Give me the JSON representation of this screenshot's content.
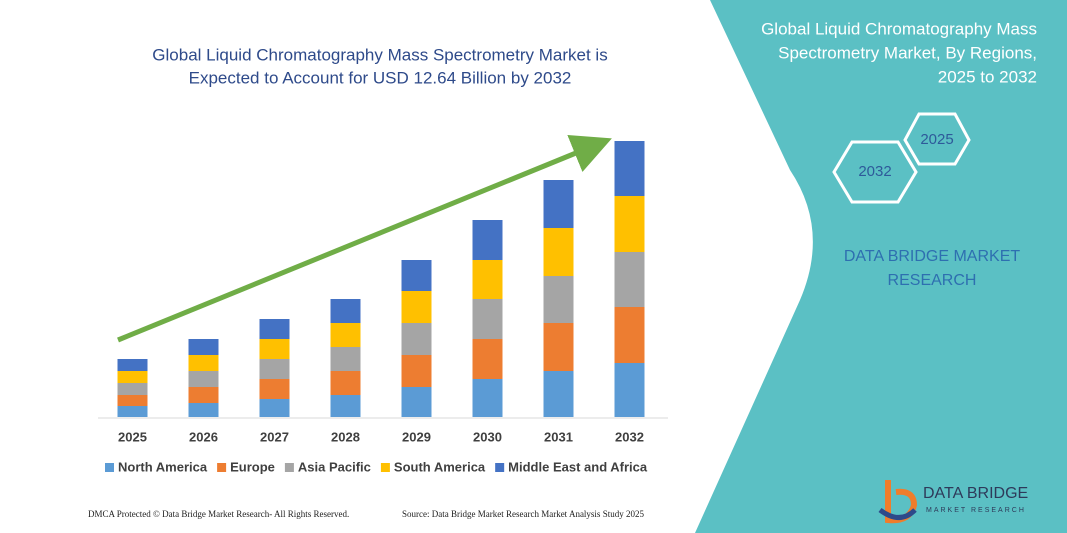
{
  "chart_data": {
    "type": "bar",
    "stacked": true,
    "title": [
      "Global Liquid Chromatography Mass Spectrometry Market is",
      "Expected to Account for USD 12.64 Billion by 2032"
    ],
    "categories": [
      "2025",
      "2026",
      "2027",
      "2028",
      "2029",
      "2030",
      "2031",
      "2032"
    ],
    "series": [
      {
        "name": "North America",
        "color": "#5b9bd5",
        "values": [
          11,
          14,
          18,
          22,
          30,
          38,
          46,
          54
        ]
      },
      {
        "name": "Europe",
        "color": "#ed7d31",
        "values": [
          11,
          16,
          20,
          24,
          32,
          40,
          48,
          56
        ]
      },
      {
        "name": "Asia Pacific",
        "color": "#a5a5a5",
        "values": [
          12,
          16,
          20,
          24,
          32,
          40,
          47,
          55
        ]
      },
      {
        "name": "South America",
        "color": "#ffc000",
        "values": [
          12,
          16,
          20,
          24,
          32,
          39,
          48,
          56
        ]
      },
      {
        "name": "Middle East and Africa",
        "color": "#4472c4",
        "values": [
          12,
          16,
          20,
          24,
          31,
          40,
          48,
          55
        ]
      }
    ]
  },
  "panel": {
    "title": [
      "Global Liquid Chromatography Mass",
      "Spectrometry Market, By Regions,",
      "2025 to 2032"
    ],
    "hex_labels": [
      "2025",
      "2032"
    ],
    "brand": [
      "DATA BRIDGE MARKET",
      "RESEARCH"
    ]
  },
  "logo": {
    "name": "DATA BRIDGE",
    "tagline": "MARKET RESEARCH"
  },
  "footer": {
    "left": "DMCA Protected © Data Bridge Market Research- All Rights Reserved.",
    "right": "Source: Data Bridge Market Research Market Analysis Study 2025"
  }
}
